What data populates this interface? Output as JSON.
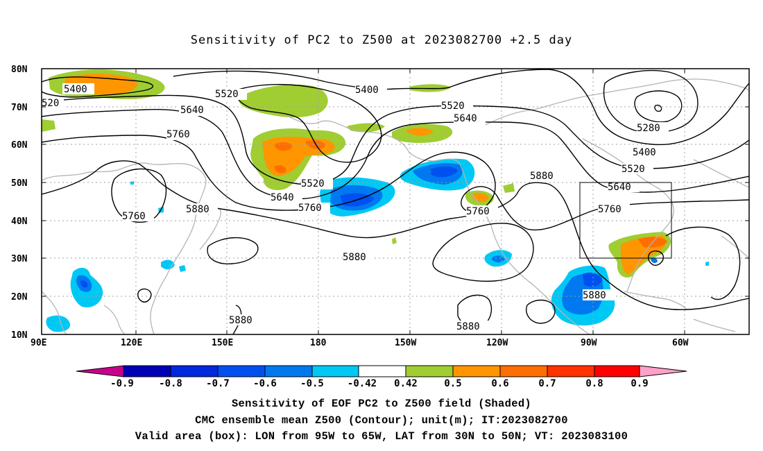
{
  "title": "Sensitivity of PC2 to Z500 at 2023082700 +2.5 day",
  "lat_labels": [
    "80N",
    "70N",
    "60N",
    "50N",
    "40N",
    "30N",
    "20N",
    "10N"
  ],
  "lon_labels": [
    "90E",
    "120E",
    "150E",
    "180",
    "150W",
    "120W",
    "90W",
    "60W"
  ],
  "contour_labels": [
    "5400",
    "5520",
    "5640",
    "5760",
    "5880",
    "5280",
    "520"
  ],
  "colorbar": {
    "labels": [
      "-0.9",
      "-0.8",
      "-0.7",
      "-0.6",
      "-0.5",
      "-0.42",
      "0.42",
      "0.5",
      "0.6",
      "0.7",
      "0.8",
      "0.9"
    ],
    "colors": [
      "#c8008c",
      "#0000b4",
      "#0028dc",
      "#0050f0",
      "#0078f0",
      "#00c8f5",
      "#ffffff",
      "#a0cd32",
      "#ff9600",
      "#ff6e00",
      "#ff3200",
      "#ff0000",
      "#ffa0c8"
    ]
  },
  "caption": {
    "line1": "Sensitivity of EOF PC2 to Z500 field (Shaded)",
    "line2": "CMC ensemble mean Z500 (Contour); unit(m); IT:2023082700",
    "line3": "Valid area (box): LON from 95W to 65W, LAT from 30N to 50N; VT: 2023083100"
  }
}
